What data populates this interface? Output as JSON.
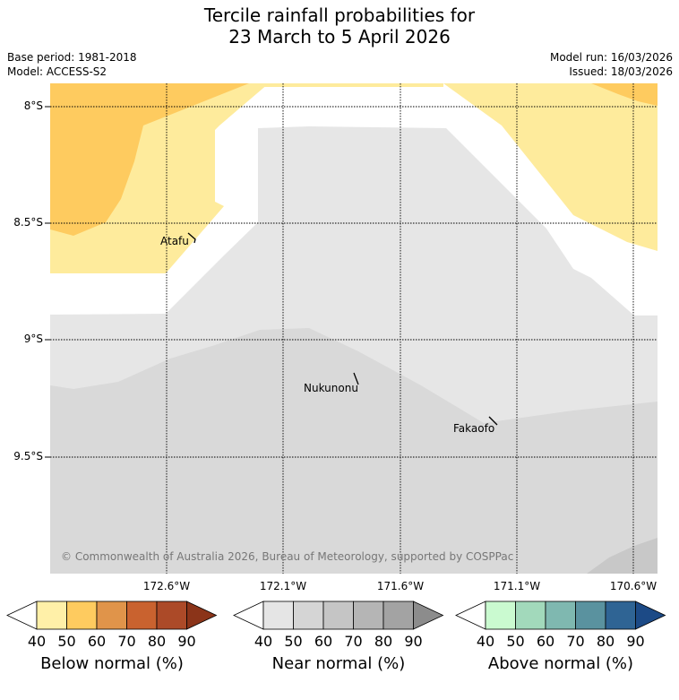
{
  "title": {
    "line1": "Tercile rainfall probabilities for",
    "line2": "23 March to 5 April 2026"
  },
  "info": {
    "base_period": "Base period: 1981-2018",
    "model": "Model: ACCESS-S2",
    "model_run": "Model run: 16/03/2026",
    "issued": "Issued: 18/03/2026"
  },
  "map": {
    "latitude_labels": [
      "8°S",
      "8.5°S",
      "9°S",
      "9.5°S"
    ],
    "longitude_labels": [
      "172.6°W",
      "172.1°W",
      "171.6°W",
      "171.1°W",
      "170.6°W"
    ],
    "places": [
      "Atafu",
      "Nukunonu",
      "Fakaofo"
    ],
    "copyright": "© Commonwealth of Australia 2026, Bureau of Meteorology, supported by COSPPac",
    "colors": {
      "below_40": "#feeb9c",
      "below_50": "#fecb5f",
      "near_40": "#e6e6e6",
      "near_50": "#d9d9d9",
      "near_60": "#c8c8c8"
    }
  },
  "colorbars": [
    {
      "label": "Below normal (%)",
      "ticks": [
        "40",
        "50",
        "60",
        "70",
        "80",
        "90"
      ],
      "colors": [
        "#fff0a8",
        "#fecb5f",
        "#e0944a",
        "#c9622f",
        "#ac4a28",
        "#8b3419"
      ]
    },
    {
      "label": "Near normal (%)",
      "ticks": [
        "40",
        "50",
        "60",
        "70",
        "80",
        "90"
      ],
      "colors": [
        "#e5e5e5",
        "#d5d5d5",
        "#c5c5c5",
        "#b5b5b5",
        "#a3a3a3",
        "#8c8c8c"
      ]
    },
    {
      "label": "Above normal (%)",
      "ticks": [
        "40",
        "50",
        "60",
        "70",
        "80",
        "90"
      ],
      "colors": [
        "#cafad0",
        "#a2d9bb",
        "#7fb8b0",
        "#5a929f",
        "#2f6494",
        "#1c4a86"
      ]
    }
  ]
}
